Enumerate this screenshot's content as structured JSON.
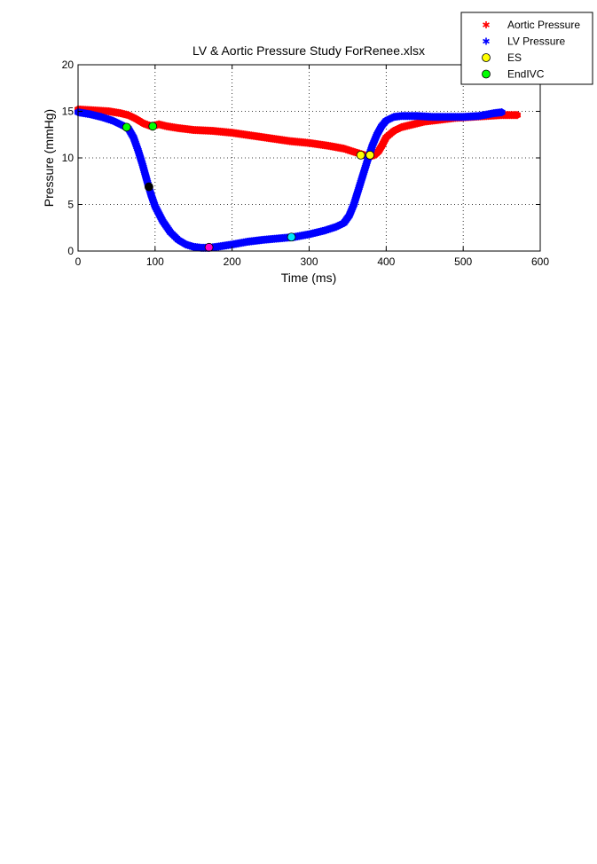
{
  "chart_data": {
    "type": "scatter",
    "title": "LV & Aortic Pressure Study ForRenee.xlsx",
    "xlabel": "Time (ms)",
    "ylabel": "Pressure (mmHg)",
    "xlim": [
      0,
      600
    ],
    "ylim": [
      0,
      20
    ],
    "xticks": [
      0,
      100,
      200,
      300,
      400,
      500,
      600
    ],
    "yticks": [
      0,
      5,
      10,
      15,
      20
    ],
    "grid": true,
    "legend_position": "top-right",
    "series": [
      {
        "name": "Aortic Pressure",
        "marker": "*",
        "color": "#ff0000",
        "x": [
          0,
          20,
          40,
          55,
          65,
          75,
          85,
          95,
          105,
          115,
          130,
          150,
          175,
          200,
          225,
          250,
          275,
          300,
          325,
          345,
          360,
          368,
          375,
          380,
          385,
          390,
          395,
          400,
          410,
          420,
          435,
          450,
          470,
          490,
          510,
          530,
          550,
          570
        ],
        "y": [
          15.2,
          15.1,
          15.0,
          14.8,
          14.6,
          14.2,
          13.7,
          13.4,
          13.6,
          13.4,
          13.2,
          13.0,
          12.9,
          12.7,
          12.4,
          12.1,
          11.8,
          11.6,
          11.3,
          11.0,
          10.6,
          10.4,
          10.2,
          10.2,
          10.3,
          10.7,
          11.4,
          12.2,
          12.9,
          13.3,
          13.6,
          13.9,
          14.1,
          14.3,
          14.4,
          14.5,
          14.6,
          14.6
        ]
      },
      {
        "name": "LV Pressure",
        "marker": "*",
        "color": "#0000ff",
        "x": [
          0,
          15,
          30,
          45,
          55,
          65,
          72,
          78,
          84,
          90,
          95,
          100,
          110,
          120,
          130,
          140,
          150,
          160,
          170,
          180,
          200,
          220,
          240,
          260,
          280,
          300,
          320,
          335,
          345,
          352,
          358,
          364,
          370,
          376,
          382,
          388,
          394,
          400,
          410,
          420,
          440,
          460,
          480,
          500,
          520,
          540,
          550
        ],
        "y": [
          14.9,
          14.7,
          14.4,
          14.0,
          13.6,
          13.2,
          12.2,
          10.8,
          9.2,
          7.4,
          6.0,
          4.8,
          3.2,
          2.0,
          1.2,
          0.7,
          0.45,
          0.35,
          0.35,
          0.45,
          0.7,
          1.0,
          1.2,
          1.35,
          1.5,
          1.8,
          2.2,
          2.6,
          3.0,
          3.8,
          5.0,
          6.6,
          8.2,
          9.8,
          11.3,
          12.5,
          13.4,
          14.0,
          14.4,
          14.5,
          14.5,
          14.4,
          14.4,
          14.4,
          14.5,
          14.8,
          14.9
        ]
      }
    ],
    "markers": [
      {
        "name": "ES",
        "color": "#ffff00",
        "x": [
          367,
          379
        ],
        "y": [
          10.3,
          10.3
        ]
      },
      {
        "name": "EndIVC",
        "color": "#00ff00",
        "x": [
          63,
          97
        ],
        "y": [
          13.3,
          13.4
        ]
      },
      {
        "color": "#000000",
        "x": [
          92
        ],
        "y": [
          6.9
        ]
      },
      {
        "color": "#ff00cc",
        "x": [
          170
        ],
        "y": [
          0.4
        ]
      },
      {
        "color": "#00e5ff",
        "x": [
          277
        ],
        "y": [
          1.5
        ]
      }
    ]
  }
}
